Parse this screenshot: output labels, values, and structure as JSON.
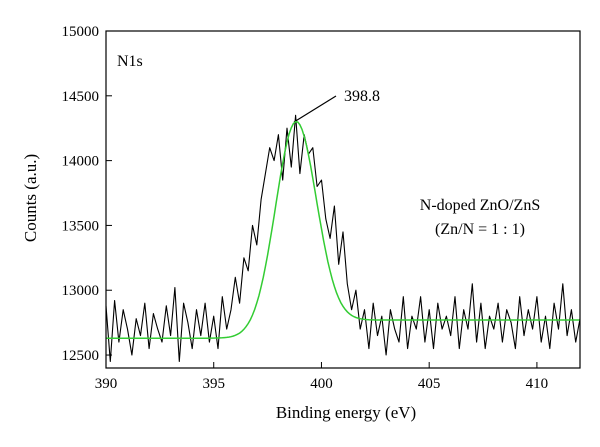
{
  "chart_data": {
    "type": "line",
    "xlabel": "Binding energy (eV)",
    "ylabel": "Counts (a.u.)",
    "xlim": [
      390,
      412
    ],
    "ylim": [
      12400,
      15000
    ],
    "x_ticks": [
      390,
      395,
      400,
      405,
      410
    ],
    "y_ticks": [
      12500,
      13000,
      13500,
      14000,
      14500,
      15000
    ],
    "grid": false,
    "annotations": {
      "panel_label": "N1s",
      "peak_label": "398.8",
      "peak_x": 398.8,
      "peak_y": 14270,
      "sample_line1": "N-doped ZnO/ZnS",
      "sample_line2": "(Zn/N = 1 : 1)"
    },
    "series": [
      {
        "role": "measured",
        "color": "#000000",
        "x": [
          390.0,
          390.2,
          390.4,
          390.6,
          390.8,
          391.0,
          391.2,
          391.4,
          391.6,
          391.8,
          392.0,
          392.2,
          392.4,
          392.6,
          392.8,
          393.0,
          393.2,
          393.4,
          393.6,
          393.8,
          394.0,
          394.2,
          394.4,
          394.6,
          394.8,
          395.0,
          395.2,
          395.4,
          395.6,
          395.8,
          396.0,
          396.2,
          396.4,
          396.6,
          396.8,
          397.0,
          397.2,
          397.4,
          397.6,
          397.8,
          398.0,
          398.2,
          398.4,
          398.6,
          398.8,
          399.0,
          399.2,
          399.4,
          399.6,
          399.8,
          400.0,
          400.2,
          400.4,
          400.6,
          400.8,
          401.0,
          401.2,
          401.4,
          401.6,
          401.8,
          402.0,
          402.2,
          402.4,
          402.6,
          402.8,
          403.0,
          403.2,
          403.4,
          403.6,
          403.8,
          404.0,
          404.2,
          404.4,
          404.6,
          404.8,
          405.0,
          405.2,
          405.4,
          405.6,
          405.8,
          406.0,
          406.2,
          406.4,
          406.6,
          406.8,
          407.0,
          407.2,
          407.4,
          407.6,
          407.8,
          408.0,
          408.2,
          408.4,
          408.6,
          408.8,
          409.0,
          409.2,
          409.4,
          409.6,
          409.8,
          410.0,
          410.2,
          410.4,
          410.6,
          410.8,
          411.0,
          411.2,
          411.4,
          411.6,
          411.8,
          412.0
        ],
        "y": [
          12880,
          12450,
          12920,
          12600,
          12850,
          12700,
          12500,
          12780,
          12650,
          12900,
          12550,
          12820,
          12700,
          12600,
          12880,
          12650,
          13020,
          12450,
          12900,
          12750,
          12550,
          12850,
          12650,
          12900,
          12600,
          12800,
          12550,
          12950,
          12700,
          12850,
          13100,
          12900,
          13250,
          13150,
          13500,
          13350,
          13700,
          13900,
          14100,
          14000,
          14200,
          13850,
          14250,
          13950,
          14350,
          13900,
          14200,
          14050,
          14100,
          13800,
          13850,
          13550,
          13400,
          13650,
          13200,
          13450,
          13050,
          12850,
          13000,
          12700,
          12850,
          12550,
          12900,
          12650,
          12800,
          12500,
          12850,
          12700,
          12600,
          12950,
          12550,
          12800,
          12700,
          12950,
          12600,
          12850,
          12550,
          12900,
          12700,
          12800,
          12650,
          12950,
          12550,
          12850,
          12700,
          13050,
          12600,
          12900,
          12550,
          12800,
          12700,
          12900,
          12600,
          12850,
          12750,
          12550,
          12950,
          12650,
          12850,
          12700,
          12950,
          12600,
          12800,
          12550,
          12900,
          12700,
          13050,
          12650,
          12850,
          12600,
          12780
        ]
      },
      {
        "role": "fit",
        "color": "#33cc33",
        "baseline_left": 12630,
        "baseline_right": 12770,
        "center": 398.8,
        "amplitude": 1600,
        "sigma": 0.95
      }
    ]
  }
}
